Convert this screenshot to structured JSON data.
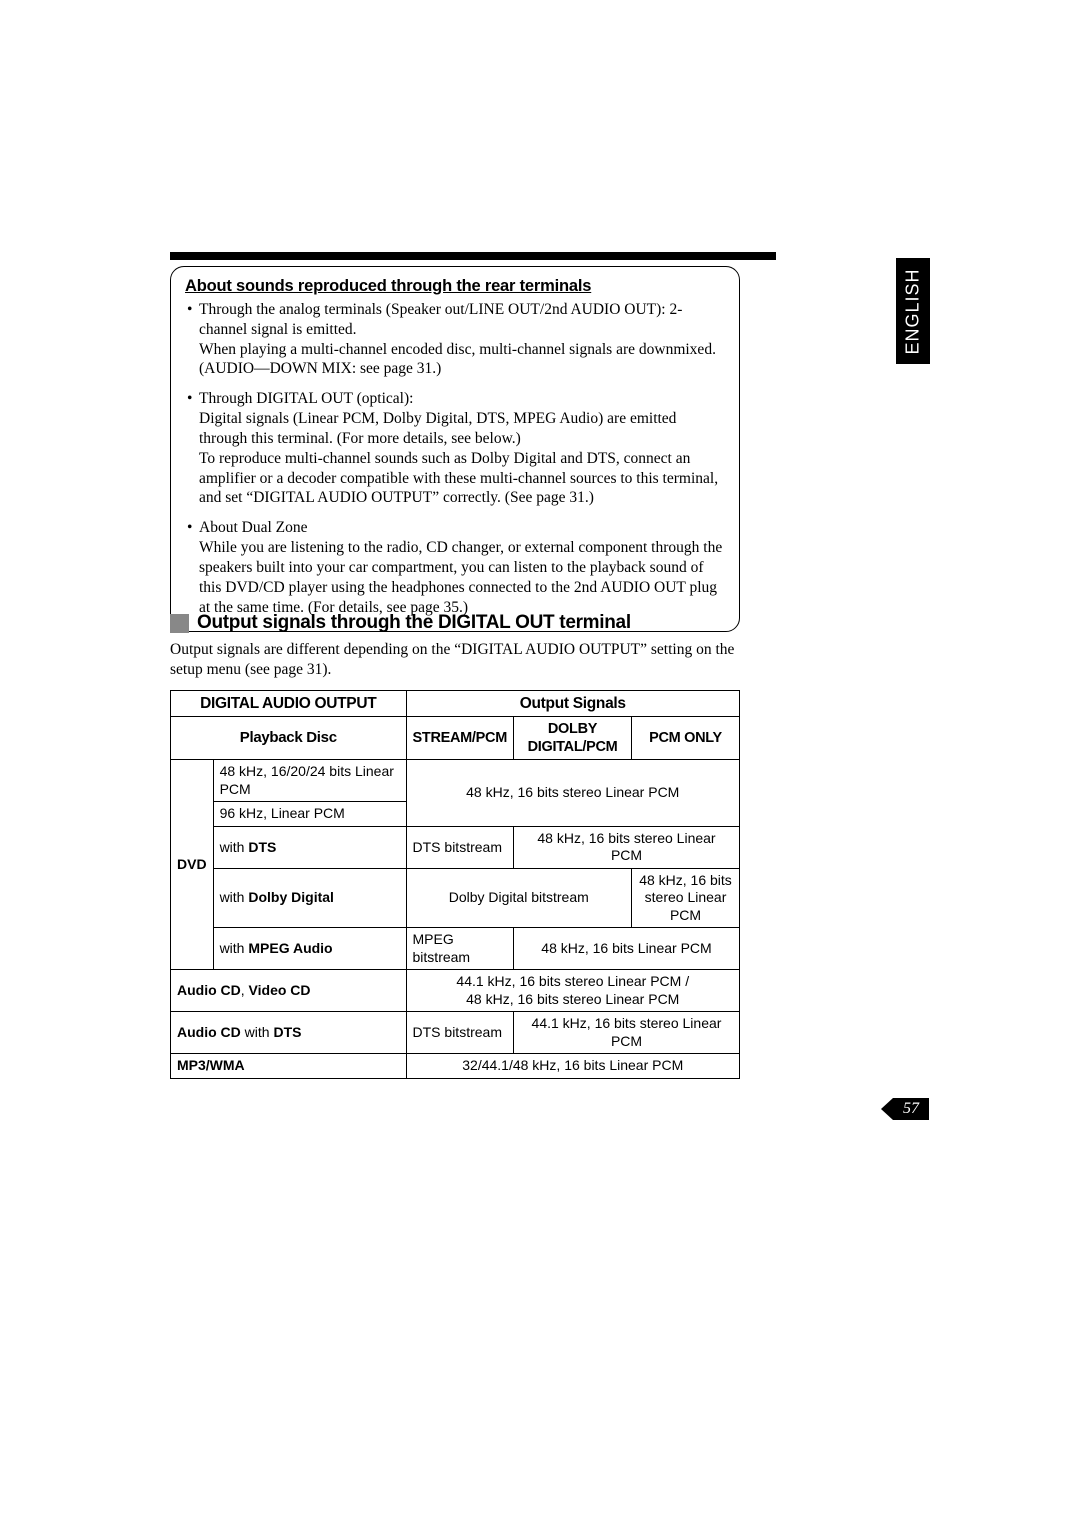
{
  "language_tab": "ENGLISH",
  "page_number": "57",
  "box": {
    "heading": "About sounds reproduced through the rear terminals",
    "items": [
      "Through the analog terminals (Speaker out/LINE OUT/2nd AUDIO OUT): 2-channel signal is emitted.\nWhen playing a multi-channel encoded disc, multi-channel signals are downmixed. (AUDIO—DOWN MIX: see page 31.)",
      "Through DIGITAL OUT (optical):\nDigital signals (Linear PCM, Dolby Digital, DTS, MPEG Audio) are emitted through this terminal. (For more details, see below.)\nTo reproduce multi-channel sounds such as Dolby Digital and DTS, connect an amplifier or a decoder compatible with these multi-channel sources to this terminal, and set “DIGITAL AUDIO OUTPUT” correctly. (See page 31.)",
      "About Dual Zone\nWhile you are listening to the radio, CD changer, or external component through the speakers built into your car compartment, you can listen to the playback sound of this DVD/CD player using the headphones connected to the 2nd AUDIO OUT plug at the same time. (For details, see page 35.)"
    ]
  },
  "section2": {
    "heading": "Output signals through the DIGITAL OUT terminal",
    "intro": "Output signals are different depending on the “DIGITAL AUDIO OUTPUT” setting on the setup menu (see page 31).",
    "th_dao": "DIGITAL AUDIO OUTPUT",
    "th_os": "Output Signals",
    "th_pd": "Playback Disc",
    "th_sp": "STREAM/PCM",
    "th_dd": "DOLBY DIGITAL/PCM",
    "th_po": "PCM ONLY",
    "dvd_label": "DVD",
    "r1c1": "48 kHz, 16/20/24 bits Linear PCM",
    "r2c1": "96 kHz, Linear PCM",
    "r12_out": "48 kHz, 16 bits stereo Linear PCM",
    "r3c1_pre": "with ",
    "r3c1_b": "DTS",
    "r3_sp": "DTS bitstream",
    "r3_rest": "48 kHz, 16 bits stereo Linear PCM",
    "r4c1_pre": "with ",
    "r4c1_b": "Dolby Digital",
    "r4_dd": "Dolby Digital bitstream",
    "r4_po": "48 kHz, 16 bits stereo Linear PCM",
    "r5c1_pre": "with ",
    "r5c1_b": "MPEG Audio",
    "r5_sp": "MPEG bitstream",
    "r5_rest": "48 kHz, 16 bits Linear PCM",
    "r6c1_a": "Audio CD",
    "r6c1_s": ", ",
    "r6c1_b": "Video CD",
    "r6_out_l1": "44.1 kHz, 16 bits stereo Linear PCM /",
    "r6_out_l2": "48 kHz, 16 bits stereo Linear PCM",
    "r7c1_a": "Audio CD",
    "r7c1_mid": " with ",
    "r7c1_b": "DTS",
    "r7_sp": "DTS bitstream",
    "r7_rest": "44.1 kHz, 16 bits stereo Linear PCM",
    "r8c1": "MP3/WMA",
    "r8_out": "32/44.1/48 kHz, 16 bits Linear PCM"
  }
}
